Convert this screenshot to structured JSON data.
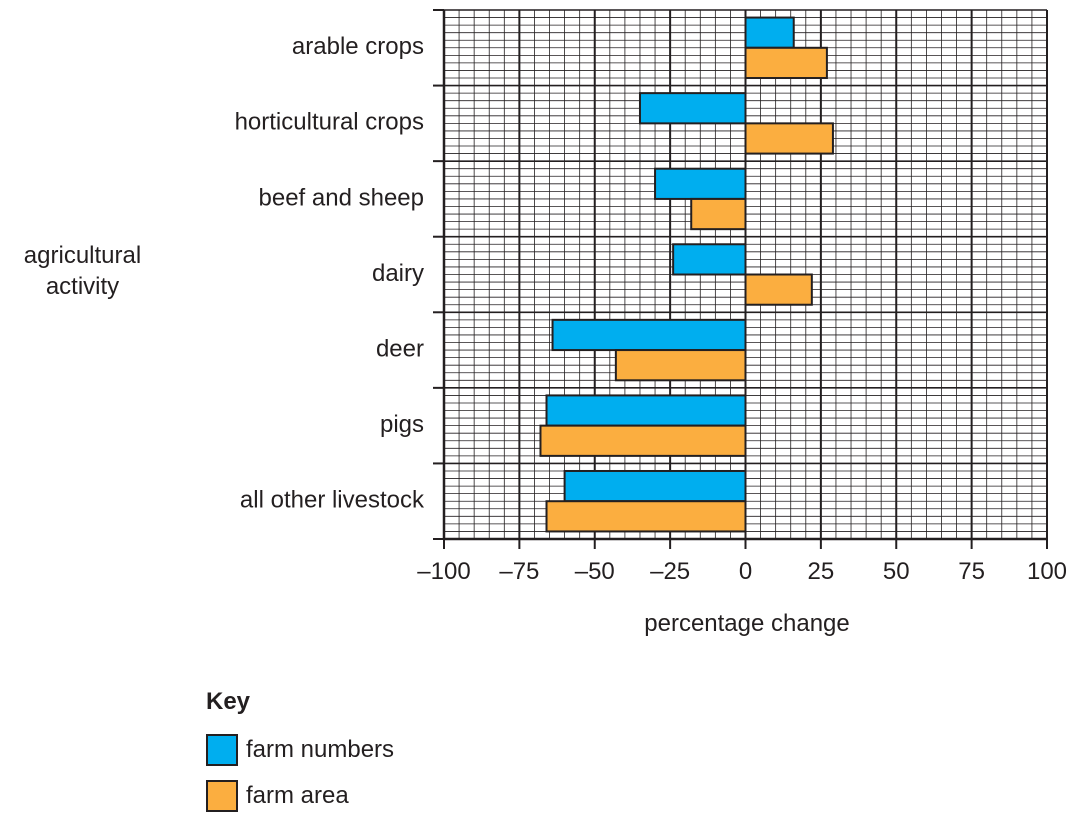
{
  "chart_data": {
    "type": "bar",
    "orientation": "horizontal",
    "categories": [
      "arable crops",
      "horticultural crops",
      "beef and sheep",
      "dairy",
      "deer",
      "pigs",
      "all other livestock"
    ],
    "series": [
      {
        "name": "farm numbers",
        "color": "#00aeef",
        "values": [
          16,
          -35,
          -30,
          -24,
          -64,
          -66,
          -60
        ]
      },
      {
        "name": "farm area",
        "color": "#fbae40",
        "values": [
          27,
          29,
          -18,
          22,
          -43,
          -68,
          -66
        ]
      }
    ],
    "xlabel": "percentage change",
    "ylabel": [
      "agricultural",
      "activity"
    ],
    "xlim": [
      -100,
      100
    ],
    "xticks": [
      -100,
      -75,
      -50,
      -25,
      0,
      25,
      50,
      75,
      100
    ],
    "xtick_labels": [
      "–100",
      "–75",
      "–50",
      "–25",
      "0",
      "25",
      "50",
      "75",
      "100"
    ],
    "grid": true,
    "legend": {
      "title": "Key",
      "placement": "bottom-left",
      "items": [
        {
          "label": "farm numbers",
          "color": "#00aeef"
        },
        {
          "label": "farm area",
          "color": "#fbae40"
        }
      ]
    }
  }
}
